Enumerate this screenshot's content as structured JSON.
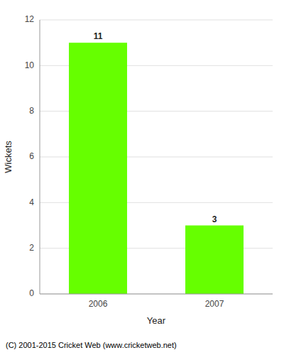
{
  "chart_data": {
    "type": "bar",
    "categories": [
      "2006",
      "2007"
    ],
    "values": [
      11,
      3
    ],
    "color": "#66ff00",
    "xlabel": "Year",
    "ylabel": "Wickets",
    "ylim": [
      0,
      12
    ],
    "yticks": [
      0,
      2,
      4,
      6,
      8,
      10,
      12
    ],
    "grid": true,
    "data_labels": true,
    "annotations": [
      "(C) 2001-2015 Cricket Web (www.cricketweb.net)"
    ]
  }
}
